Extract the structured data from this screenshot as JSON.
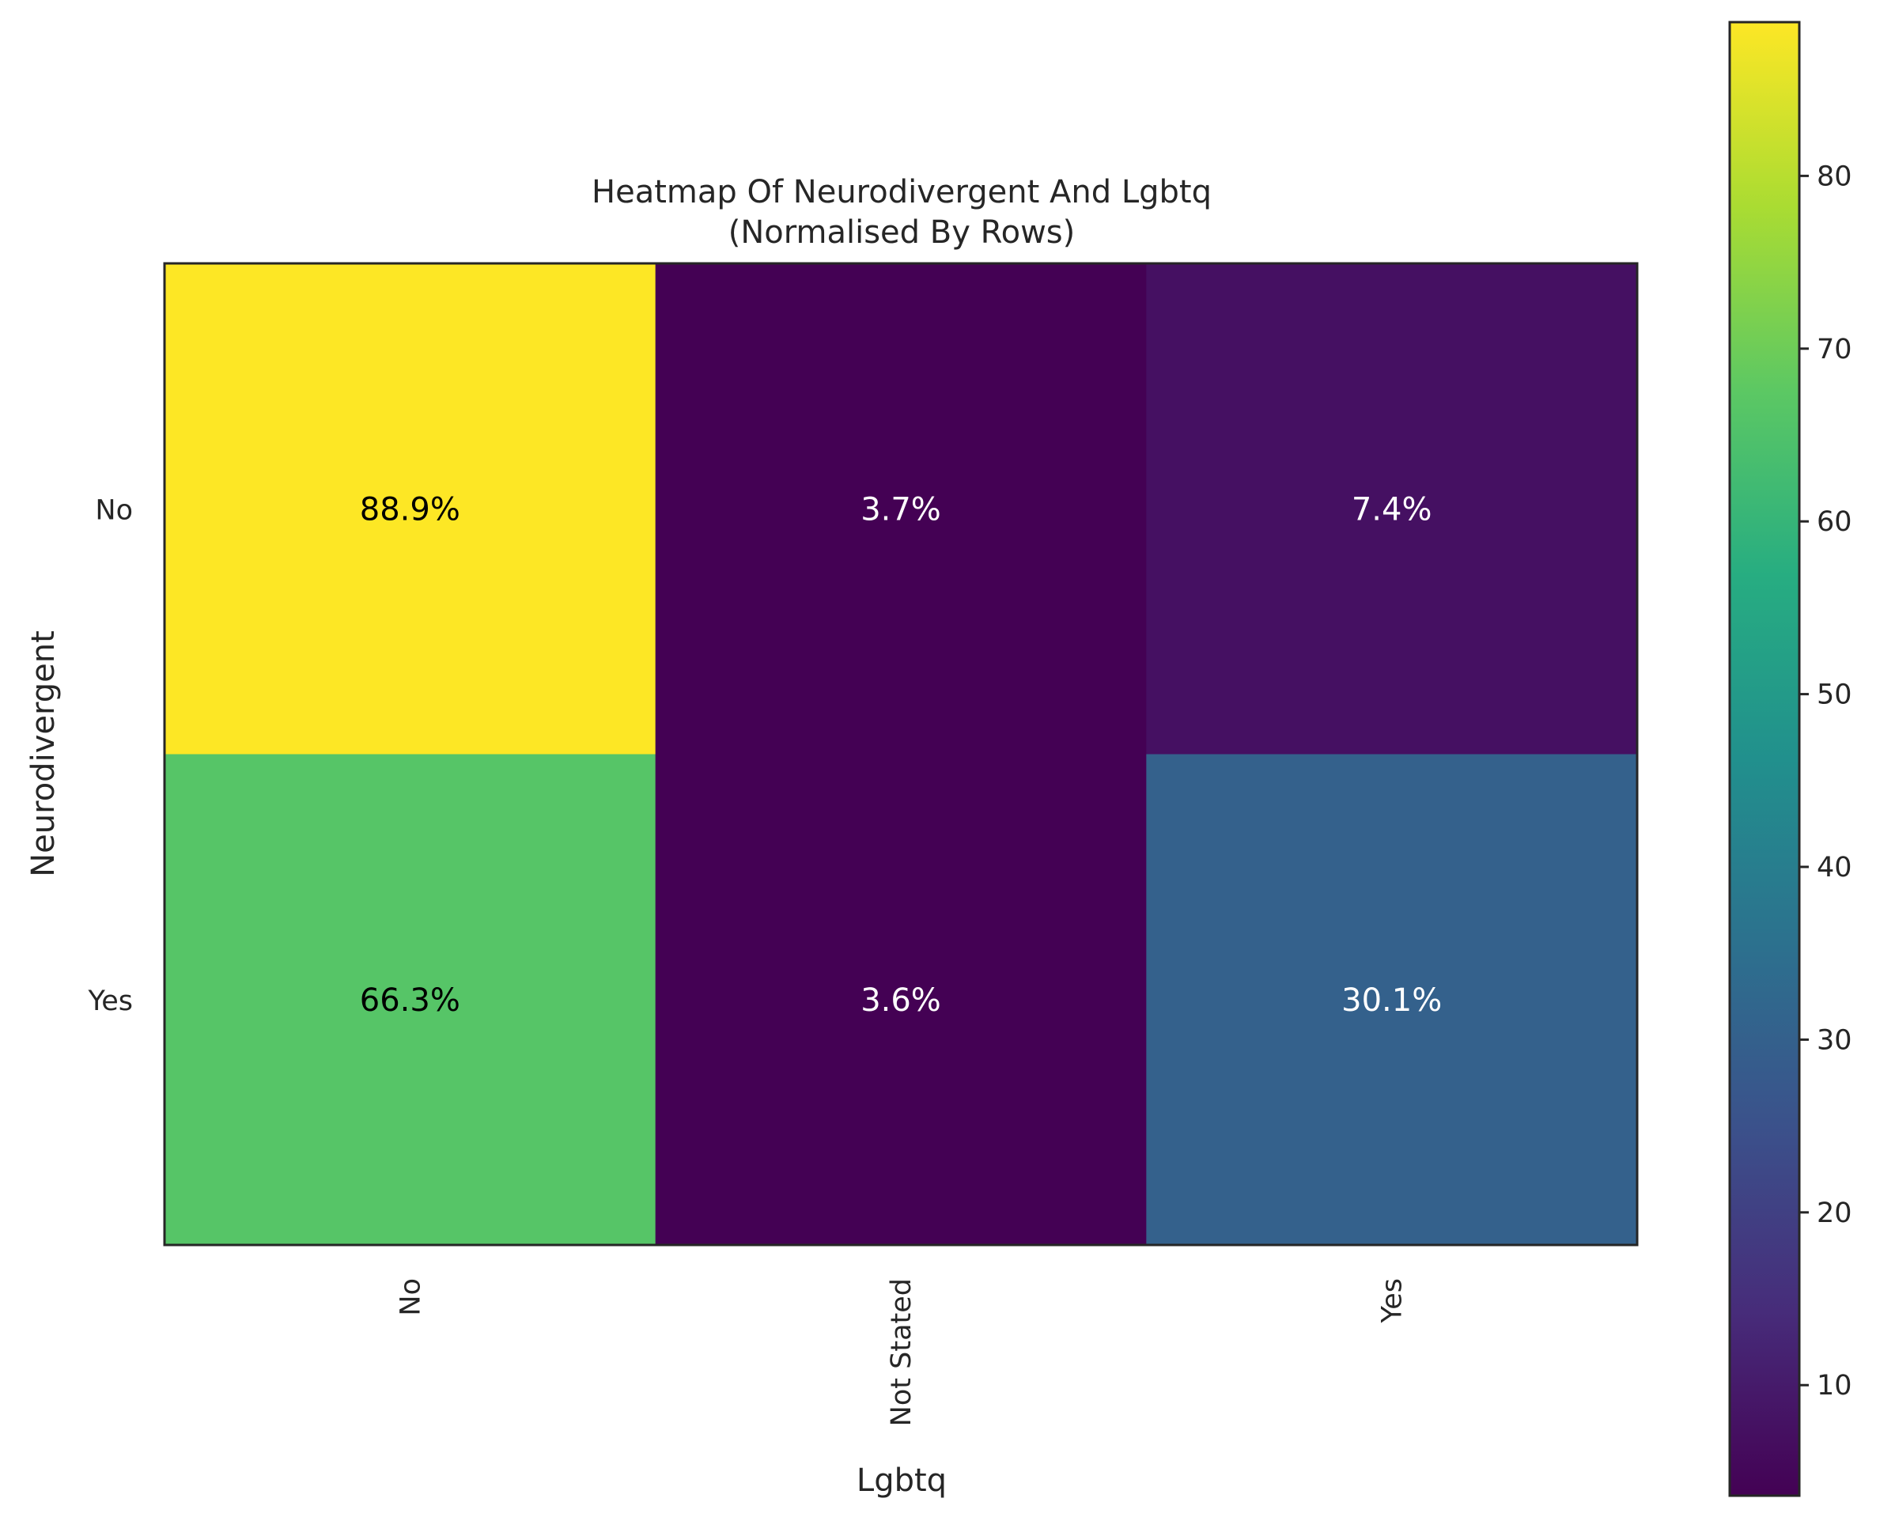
{
  "chart_data": {
    "type": "heatmap",
    "title": "Heatmap Of Neurodivergent And Lgbtq",
    "subtitle": "(Normalised By Rows)",
    "xlabel": "Lgbtq",
    "ylabel": "Neurodivergent",
    "x_categories": [
      "No",
      "Not Stated",
      "Yes"
    ],
    "y_categories": [
      "No",
      "Yes"
    ],
    "values": [
      [
        88.9,
        3.7,
        7.4
      ],
      [
        66.3,
        3.6,
        30.1
      ]
    ],
    "cell_labels": [
      [
        "88.9%",
        "3.7%",
        "7.4%"
      ],
      [
        "66.3%",
        "3.6%",
        "30.1%"
      ]
    ],
    "colormap": "viridis",
    "colorbar": {
      "range": [
        3.6,
        88.9
      ],
      "ticks": [
        10,
        20,
        30,
        40,
        50,
        60,
        70,
        80
      ],
      "tick_labels": [
        "10",
        "20",
        "30",
        "40",
        "50",
        "60",
        "70",
        "80"
      ]
    },
    "grid": false,
    "legend": "colorbar-right"
  }
}
